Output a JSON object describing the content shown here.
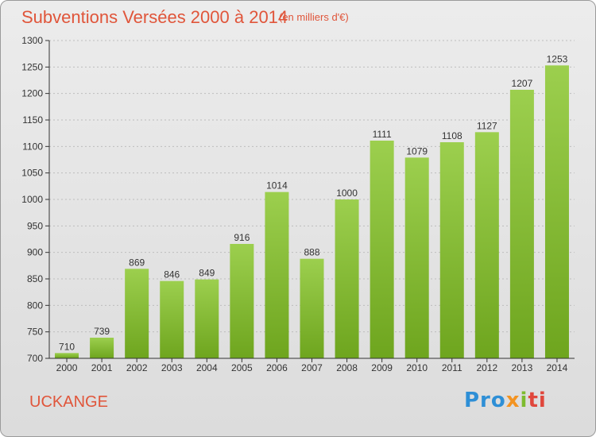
{
  "title": "Subventions Versées 2000 à 2014",
  "subtitle": "(en milliers d'€)",
  "location": "UCKANGE",
  "logo": {
    "p1": "Pro",
    "p2": "x",
    "p3": "i",
    "p4": "ti"
  },
  "colors": {
    "bar_top": "#9ccf4e",
    "bar_bottom": "#6ea51e",
    "title": "#e0553a"
  },
  "chart_data": {
    "type": "bar",
    "categories": [
      "2000",
      "2001",
      "2002",
      "2003",
      "2004",
      "2005",
      "2006",
      "2007",
      "2008",
      "2009",
      "2010",
      "2011",
      "2012",
      "2013",
      "2014"
    ],
    "values": [
      710,
      739,
      869,
      846,
      849,
      916,
      1014,
      888,
      1000,
      1111,
      1079,
      1108,
      1127,
      1207,
      1253
    ],
    "ylim": [
      700,
      1300
    ],
    "yticks": [
      700,
      750,
      800,
      850,
      900,
      950,
      1000,
      1050,
      1100,
      1150,
      1200,
      1250,
      1300
    ],
    "grid": true,
    "legend": "none"
  }
}
